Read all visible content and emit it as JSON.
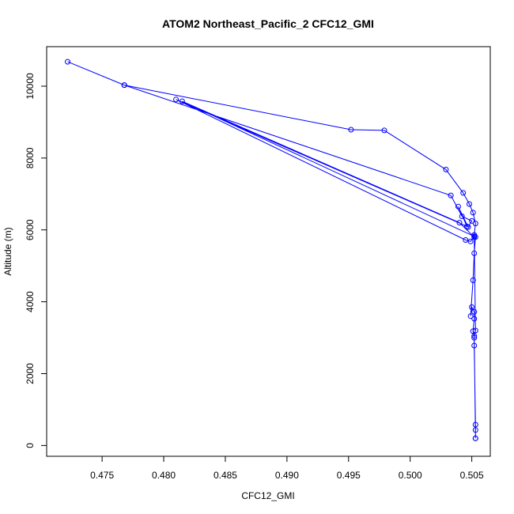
{
  "chart_data": {
    "type": "line",
    "title": "ATOM2 Northeast_Pacific_2 CFC12_GMI",
    "xlabel": "CFC12_GMI",
    "ylabel": "Altitude (m)",
    "xlim": [
      0.4705,
      0.5065
    ],
    "ylim": [
      -300,
      11100
    ],
    "xticks": [
      0.475,
      0.48,
      0.485,
      0.49,
      0.495,
      0.5,
      0.505
    ],
    "xtick_labels": [
      "0.475",
      "0.480",
      "0.485",
      "0.490",
      "0.495",
      "0.500",
      "0.505"
    ],
    "yticks": [
      0,
      2000,
      4000,
      6000,
      8000,
      10000
    ],
    "ytick_labels": [
      "0",
      "2000",
      "4000",
      "6000",
      "8000",
      "10000"
    ],
    "grid": false,
    "line_color": "#0000ff",
    "marker": "open-circle",
    "series": [
      {
        "points": [
          [
            0.5053,
            200
          ],
          [
            0.5053,
            430
          ],
          [
            0.5053,
            580
          ],
          [
            0.5052,
            2780
          ],
          [
            0.5052,
            3000
          ],
          [
            0.5051,
            3180
          ],
          [
            0.5052,
            3530
          ],
          [
            0.5052,
            3720
          ],
          [
            0.505,
            3850
          ],
          [
            0.5049,
            3600
          ],
          [
            0.5051,
            4600
          ],
          [
            0.5052,
            5350
          ],
          [
            0.5053,
            5800
          ],
          [
            0.5052,
            5860
          ],
          [
            0.5053,
            6180
          ],
          [
            0.5051,
            6480
          ],
          [
            0.5048,
            6720
          ],
          [
            0.5043,
            7030
          ],
          [
            0.5029,
            7680
          ],
          [
            0.4979,
            8770
          ],
          [
            0.4952,
            8790
          ],
          [
            0.4768,
            10030
          ],
          [
            0.4722,
            10680
          ],
          [
            0.4768,
            10030
          ],
          [
            0.5033,
            6960
          ],
          [
            0.5042,
            6380
          ],
          [
            0.505,
            6250
          ],
          [
            0.5047,
            6080
          ],
          [
            0.5039,
            6650
          ],
          [
            0.5046,
            6100
          ],
          [
            0.481,
            9630
          ],
          [
            0.5045,
            5720
          ],
          [
            0.5049,
            5680
          ],
          [
            0.5052,
            5820
          ],
          [
            0.4815,
            9580
          ],
          [
            0.504,
            6200
          ],
          [
            0.5052,
            5800
          ],
          [
            0.5053,
            3200
          ],
          [
            0.5052,
            3050
          ],
          [
            0.5053,
            200
          ]
        ]
      }
    ]
  }
}
